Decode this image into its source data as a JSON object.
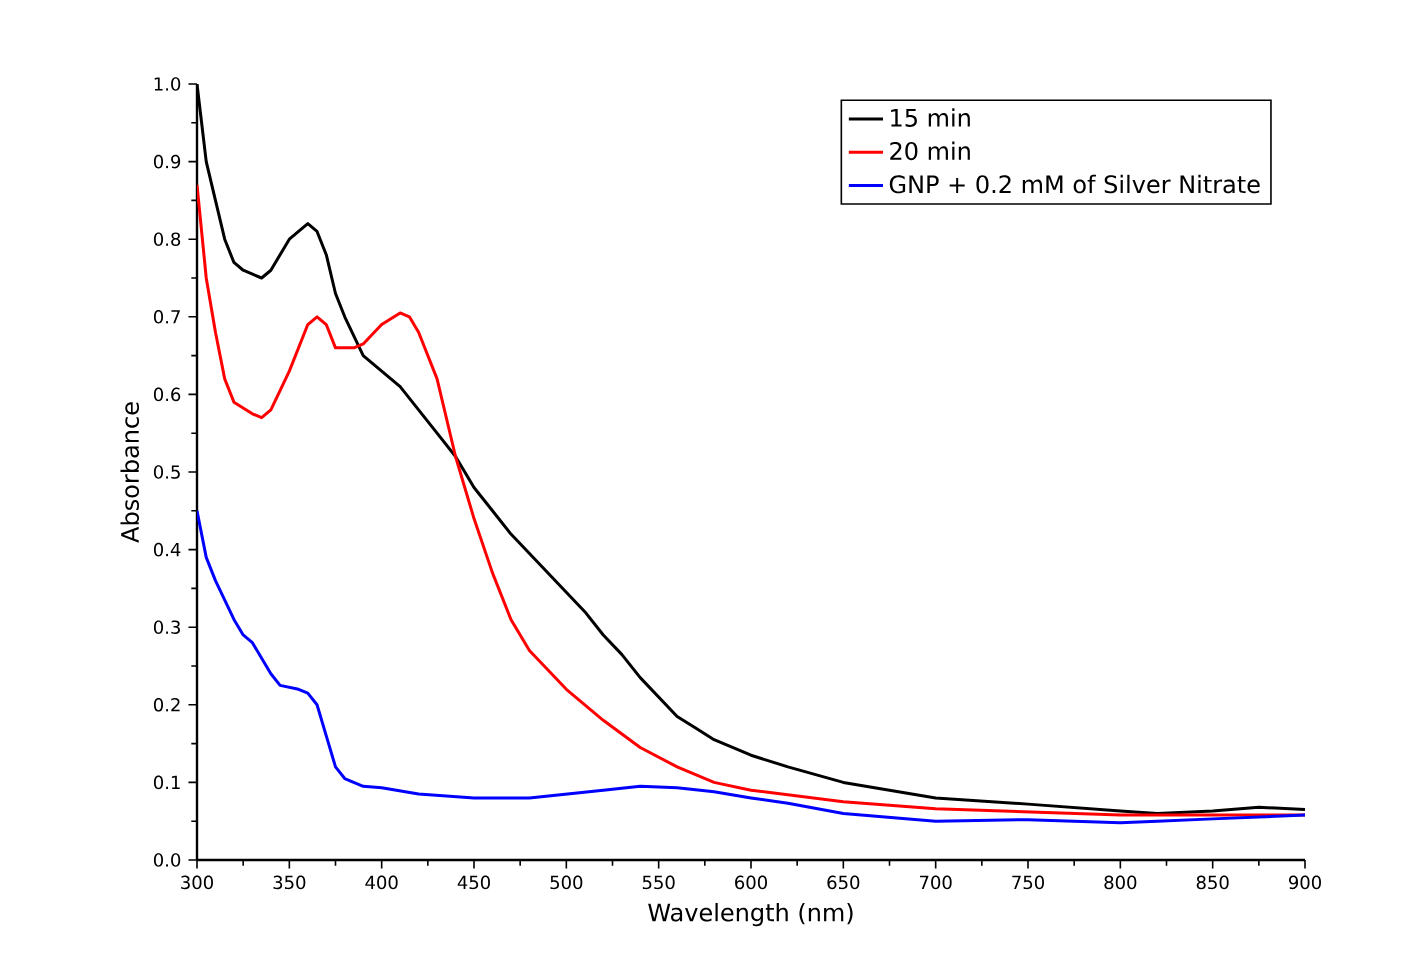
{
  "chart_data": {
    "type": "line",
    "xlabel": "Wavelength (nm)",
    "ylabel": "Absorbance",
    "xlim": [
      300,
      900
    ],
    "ylim": [
      0,
      1
    ],
    "xticks": [
      300,
      350,
      400,
      450,
      500,
      550,
      600,
      650,
      700,
      750,
      800,
      850,
      900
    ],
    "yticks": [
      {
        "value": 0,
        "label": "0.0"
      },
      {
        "value": 0.1,
        "label": "0.1"
      },
      {
        "value": 0.2,
        "label": "0.2"
      },
      {
        "value": 0.3,
        "label": "0.3"
      },
      {
        "value": 0.4,
        "label": "0.4"
      },
      {
        "value": 0.5,
        "label": "0.5"
      },
      {
        "value": 0.6,
        "label": "0.6"
      },
      {
        "value": 0.7,
        "label": "0.7"
      },
      {
        "value": 0.8,
        "label": "0.8"
      },
      {
        "value": 0.9,
        "label": "0.9"
      },
      {
        "value": 1,
        "label": "1.0"
      }
    ],
    "legend": "top right",
    "grid": false,
    "marker": "none",
    "line_style": "solid",
    "series": [
      {
        "name": "15 min",
        "color": "#000000",
        "x": [
          300,
          305,
          310,
          315,
          320,
          325,
          335,
          340,
          350,
          360,
          365,
          370,
          375,
          380,
          390,
          400,
          410,
          420,
          430,
          440,
          450,
          460,
          470,
          480,
          490,
          500,
          510,
          520,
          530,
          540,
          550,
          560,
          570,
          580,
          600,
          620,
          650,
          700,
          750,
          800,
          820,
          850,
          875,
          900
        ],
        "values": [
          1.0,
          0.9,
          0.85,
          0.8,
          0.77,
          0.76,
          0.75,
          0.76,
          0.8,
          0.82,
          0.81,
          0.78,
          0.73,
          0.7,
          0.65,
          0.63,
          0.61,
          0.58,
          0.55,
          0.52,
          0.48,
          0.45,
          0.42,
          0.395,
          0.37,
          0.345,
          0.32,
          0.29,
          0.265,
          0.235,
          0.21,
          0.185,
          0.17,
          0.155,
          0.135,
          0.12,
          0.1,
          0.08,
          0.072,
          0.063,
          0.06,
          0.063,
          0.068,
          0.065
        ]
      },
      {
        "name": "20 min",
        "color": "#ff0000",
        "x": [
          300,
          305,
          310,
          315,
          320,
          330,
          335,
          340,
          350,
          360,
          365,
          370,
          375,
          385,
          390,
          400,
          410,
          415,
          420,
          430,
          440,
          450,
          460,
          470,
          480,
          490,
          500,
          520,
          540,
          560,
          580,
          600,
          650,
          700,
          800,
          900
        ],
        "values": [
          0.87,
          0.75,
          0.68,
          0.62,
          0.59,
          0.575,
          0.57,
          0.58,
          0.63,
          0.69,
          0.7,
          0.69,
          0.66,
          0.66,
          0.665,
          0.69,
          0.705,
          0.7,
          0.68,
          0.62,
          0.52,
          0.44,
          0.37,
          0.31,
          0.27,
          0.245,
          0.22,
          0.18,
          0.145,
          0.12,
          0.1,
          0.09,
          0.075,
          0.066,
          0.058,
          0.058
        ]
      },
      {
        "name": "GNP + 0.2 mM  of Silver Nitrate",
        "color": "#0000ff",
        "x": [
          300,
          305,
          310,
          320,
          325,
          330,
          340,
          345,
          355,
          360,
          365,
          370,
          375,
          380,
          390,
          400,
          420,
          450,
          480,
          500,
          520,
          540,
          560,
          580,
          600,
          620,
          650,
          700,
          750,
          800,
          820,
          850,
          900
        ],
        "values": [
          0.45,
          0.39,
          0.36,
          0.31,
          0.29,
          0.28,
          0.24,
          0.225,
          0.22,
          0.215,
          0.2,
          0.16,
          0.12,
          0.105,
          0.095,
          0.093,
          0.085,
          0.08,
          0.08,
          0.085,
          0.09,
          0.095,
          0.093,
          0.088,
          0.08,
          0.073,
          0.06,
          0.05,
          0.052,
          0.048,
          0.05,
          0.053,
          0.058
        ]
      }
    ]
  }
}
